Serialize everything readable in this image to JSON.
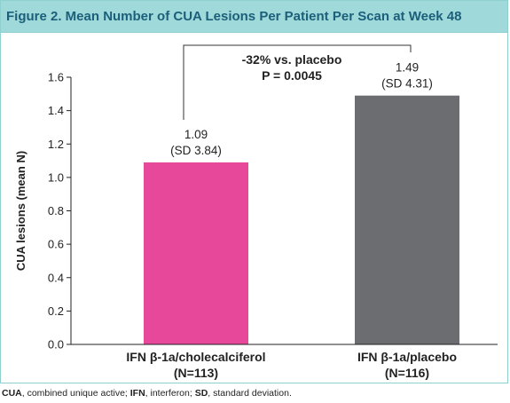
{
  "chart_data": {
    "type": "bar",
    "title": "Figure 2. Mean Number of CUA Lesions Per Patient Per Scan at Week 48",
    "xlabel": "",
    "ylabel": "CUA lesions (mean N)",
    "ylim": [
      0,
      1.6
    ],
    "yticks": [
      "0.0",
      "0.2",
      "0.4",
      "0.6",
      "0.8",
      "1.0",
      "1.2",
      "1.4",
      "1.6"
    ],
    "grid": false,
    "categories": [
      {
        "name": "IFN β-1a/cholecalciferol",
        "n": "(N=113)"
      },
      {
        "name": "IFN β-1a/placebo",
        "n": "(N=116)"
      }
    ],
    "values": [
      1.09,
      1.49
    ],
    "value_labels": [
      "1.09",
      "1.49"
    ],
    "sd_labels": [
      "(SD 3.84)",
      "(SD 4.31)"
    ],
    "colors": [
      "#e8489a",
      "#6b6d71"
    ],
    "comparison": {
      "label": "-32% vs. placebo",
      "pvalue": "P = 0.0045"
    }
  },
  "footnote": [
    {
      "abbr": "CUA",
      "text": ", combined unique active; "
    },
    {
      "abbr": "IFN",
      "text": ", interferon; "
    },
    {
      "abbr": "SD",
      "text": ", standard deviation."
    }
  ]
}
